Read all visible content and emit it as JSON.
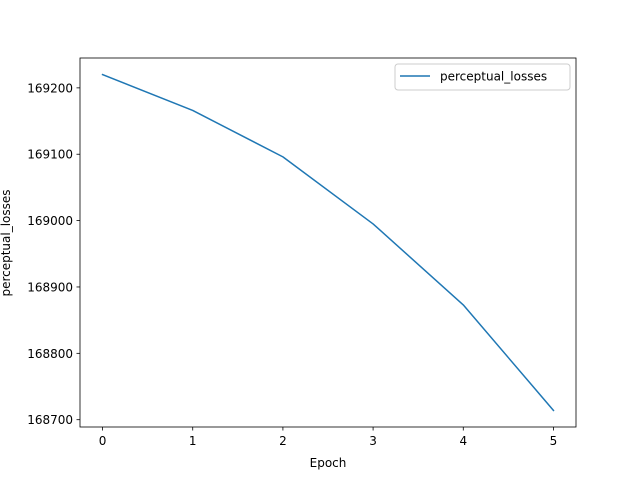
{
  "chart_data": {
    "type": "line",
    "title": "",
    "xlabel": "Epoch",
    "ylabel": "perceptual_losses",
    "x": [
      0,
      1,
      2,
      3,
      4,
      5
    ],
    "series": [
      {
        "name": "perceptual_losses",
        "color": "#1f77b4",
        "values": [
          169220,
          169166,
          169096,
          168995,
          168873,
          168714
        ]
      }
    ],
    "xticks": [
      0,
      1,
      2,
      3,
      4,
      5
    ],
    "xtick_labels": [
      "0",
      "1",
      "2",
      "3",
      "4",
      "5"
    ],
    "yticks": [
      168700,
      168800,
      168900,
      169000,
      169100,
      169200
    ],
    "ytick_labels": [
      "168700",
      "168800",
      "168900",
      "169000",
      "169100",
      "169200"
    ],
    "xlim": [
      -0.25,
      5.25
    ],
    "ylim": [
      168689,
      169245
    ],
    "grid": false,
    "legend_position": "top-right"
  }
}
